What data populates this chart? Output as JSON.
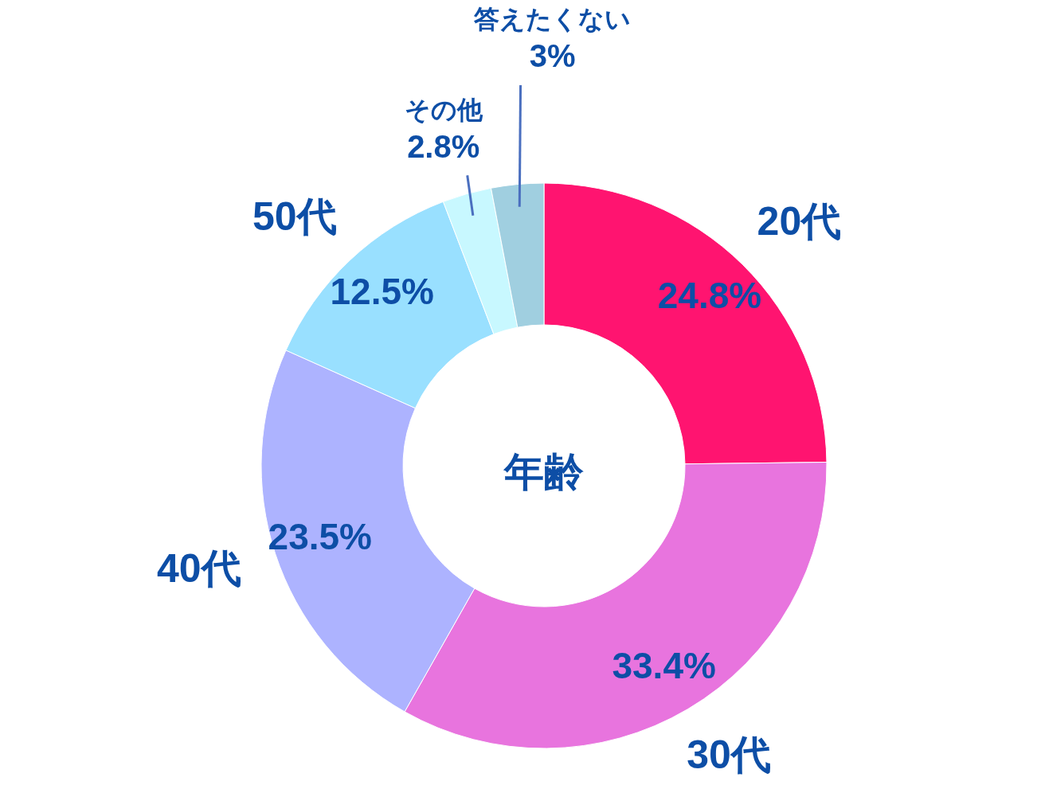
{
  "chart_data": {
    "type": "donut",
    "title": "年齢",
    "categories": [
      "20代",
      "30代",
      "40代",
      "50代",
      "その他",
      "答えたくない"
    ],
    "values": [
      24.8,
      33.4,
      23.5,
      12.5,
      2.8,
      3
    ],
    "colors": [
      "#ff1470",
      "#e874de",
      "#adb3ff",
      "#99e0ff",
      "#c8f8ff",
      "#a0cfe0"
    ],
    "value_labels": [
      "24.8%",
      "33.4%",
      "23.5%",
      "12.5%",
      "2.8%",
      "3%"
    ]
  }
}
